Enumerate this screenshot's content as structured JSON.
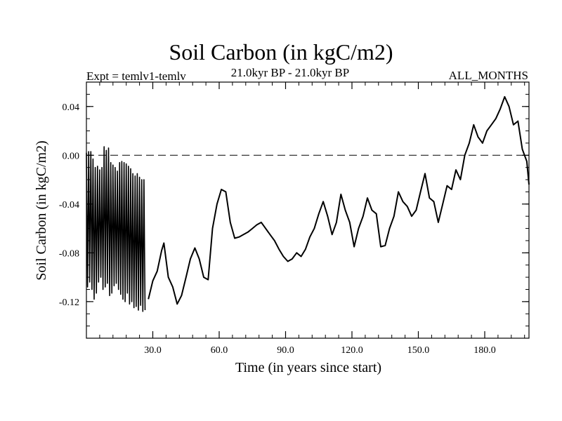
{
  "chart_data": {
    "type": "line",
    "title": "Soil Carbon (in kgC/m2)",
    "subtitle": "21.0kyr BP - 21.0kyr BP",
    "experiment": "Expt = temlv1-temlv",
    "period": "ALL_MONTHS",
    "xlabel": "Time (in years since start)",
    "ylabel": "Soil Carbon (in kgC/m2)",
    "xlim": [
      0,
      200
    ],
    "ylim": [
      -0.15,
      0.06
    ],
    "xticks": [
      30.0,
      60.0,
      90.0,
      120.0,
      150.0,
      180.0
    ],
    "xtick_labels": [
      "30.0",
      "60.0",
      "90.0",
      "120.0",
      "150.0",
      "180.0"
    ],
    "yticks": [
      0.04,
      0.0,
      -0.04,
      -0.08,
      -0.12
    ],
    "ytick_labels": [
      "0.04",
      "0.00",
      "-0.04",
      "-0.08",
      "-0.12"
    ],
    "reference_line": {
      "y": 0.0,
      "style": "dashed"
    },
    "oscillation": {
      "x_range": [
        0,
        28
      ],
      "period": 1.0,
      "peaks": [
        0.002,
        0.003,
        0.003,
        -0.003,
        -0.01,
        -0.009,
        -0.012,
        -0.01,
        0.007,
        0.004,
        0.006,
        -0.006,
        -0.008,
        -0.01,
        -0.013,
        -0.006,
        -0.005,
        -0.006,
        -0.007,
        -0.009,
        -0.011,
        -0.015,
        -0.017,
        -0.015,
        -0.018,
        -0.02,
        -0.02
      ],
      "troughs": [
        -0.108,
        -0.104,
        -0.11,
        -0.118,
        -0.113,
        -0.104,
        -0.1,
        -0.11,
        -0.108,
        -0.105,
        -0.115,
        -0.113,
        -0.107,
        -0.105,
        -0.11,
        -0.114,
        -0.118,
        -0.12,
        -0.113,
        -0.122,
        -0.12,
        -0.125,
        -0.124,
        -0.127,
        -0.123,
        -0.128,
        -0.127
      ]
    },
    "series": [
      {
        "x": [
          28,
          30,
          32,
          34,
          35,
          37,
          39,
          41,
          43,
          45,
          47,
          49,
          51,
          53,
          55,
          57,
          59,
          61,
          63,
          65,
          67,
          69,
          71,
          73,
          75,
          77,
          79,
          81,
          83,
          85,
          87,
          89,
          91,
          93,
          95,
          97,
          99,
          101,
          103,
          105,
          107,
          109,
          111,
          113,
          115,
          117,
          119,
          121,
          123,
          125,
          127,
          129,
          131,
          133,
          135,
          137,
          139,
          141,
          143,
          145,
          147,
          149,
          151,
          153,
          155,
          157,
          159,
          161,
          163,
          165,
          167,
          169,
          171,
          173,
          175,
          177,
          179,
          181,
          183,
          185,
          187,
          189,
          191,
          193,
          195,
          197,
          199,
          200
        ],
        "y": [
          -0.118,
          -0.103,
          -0.095,
          -0.078,
          -0.072,
          -0.1,
          -0.108,
          -0.122,
          -0.115,
          -0.1,
          -0.085,
          -0.076,
          -0.085,
          -0.1,
          -0.102,
          -0.06,
          -0.04,
          -0.028,
          -0.03,
          -0.055,
          -0.068,
          -0.067,
          -0.065,
          -0.063,
          -0.06,
          -0.057,
          -0.055,
          -0.06,
          -0.065,
          -0.07,
          -0.077,
          -0.083,
          -0.087,
          -0.085,
          -0.08,
          -0.083,
          -0.077,
          -0.067,
          -0.06,
          -0.048,
          -0.038,
          -0.05,
          -0.065,
          -0.055,
          -0.032,
          -0.045,
          -0.055,
          -0.075,
          -0.06,
          -0.05,
          -0.035,
          -0.045,
          -0.048,
          -0.075,
          -0.074,
          -0.06,
          -0.05,
          -0.03,
          -0.038,
          -0.042,
          -0.05,
          -0.045,
          -0.03,
          -0.015,
          -0.035,
          -0.038,
          -0.055,
          -0.04,
          -0.025,
          -0.028,
          -0.012,
          -0.02,
          0.0,
          0.01,
          0.025,
          0.015,
          0.01,
          0.02,
          0.025,
          0.03,
          0.038,
          0.048,
          0.04,
          0.025,
          0.028,
          0.005,
          -0.005,
          -0.024
        ]
      }
    ]
  }
}
